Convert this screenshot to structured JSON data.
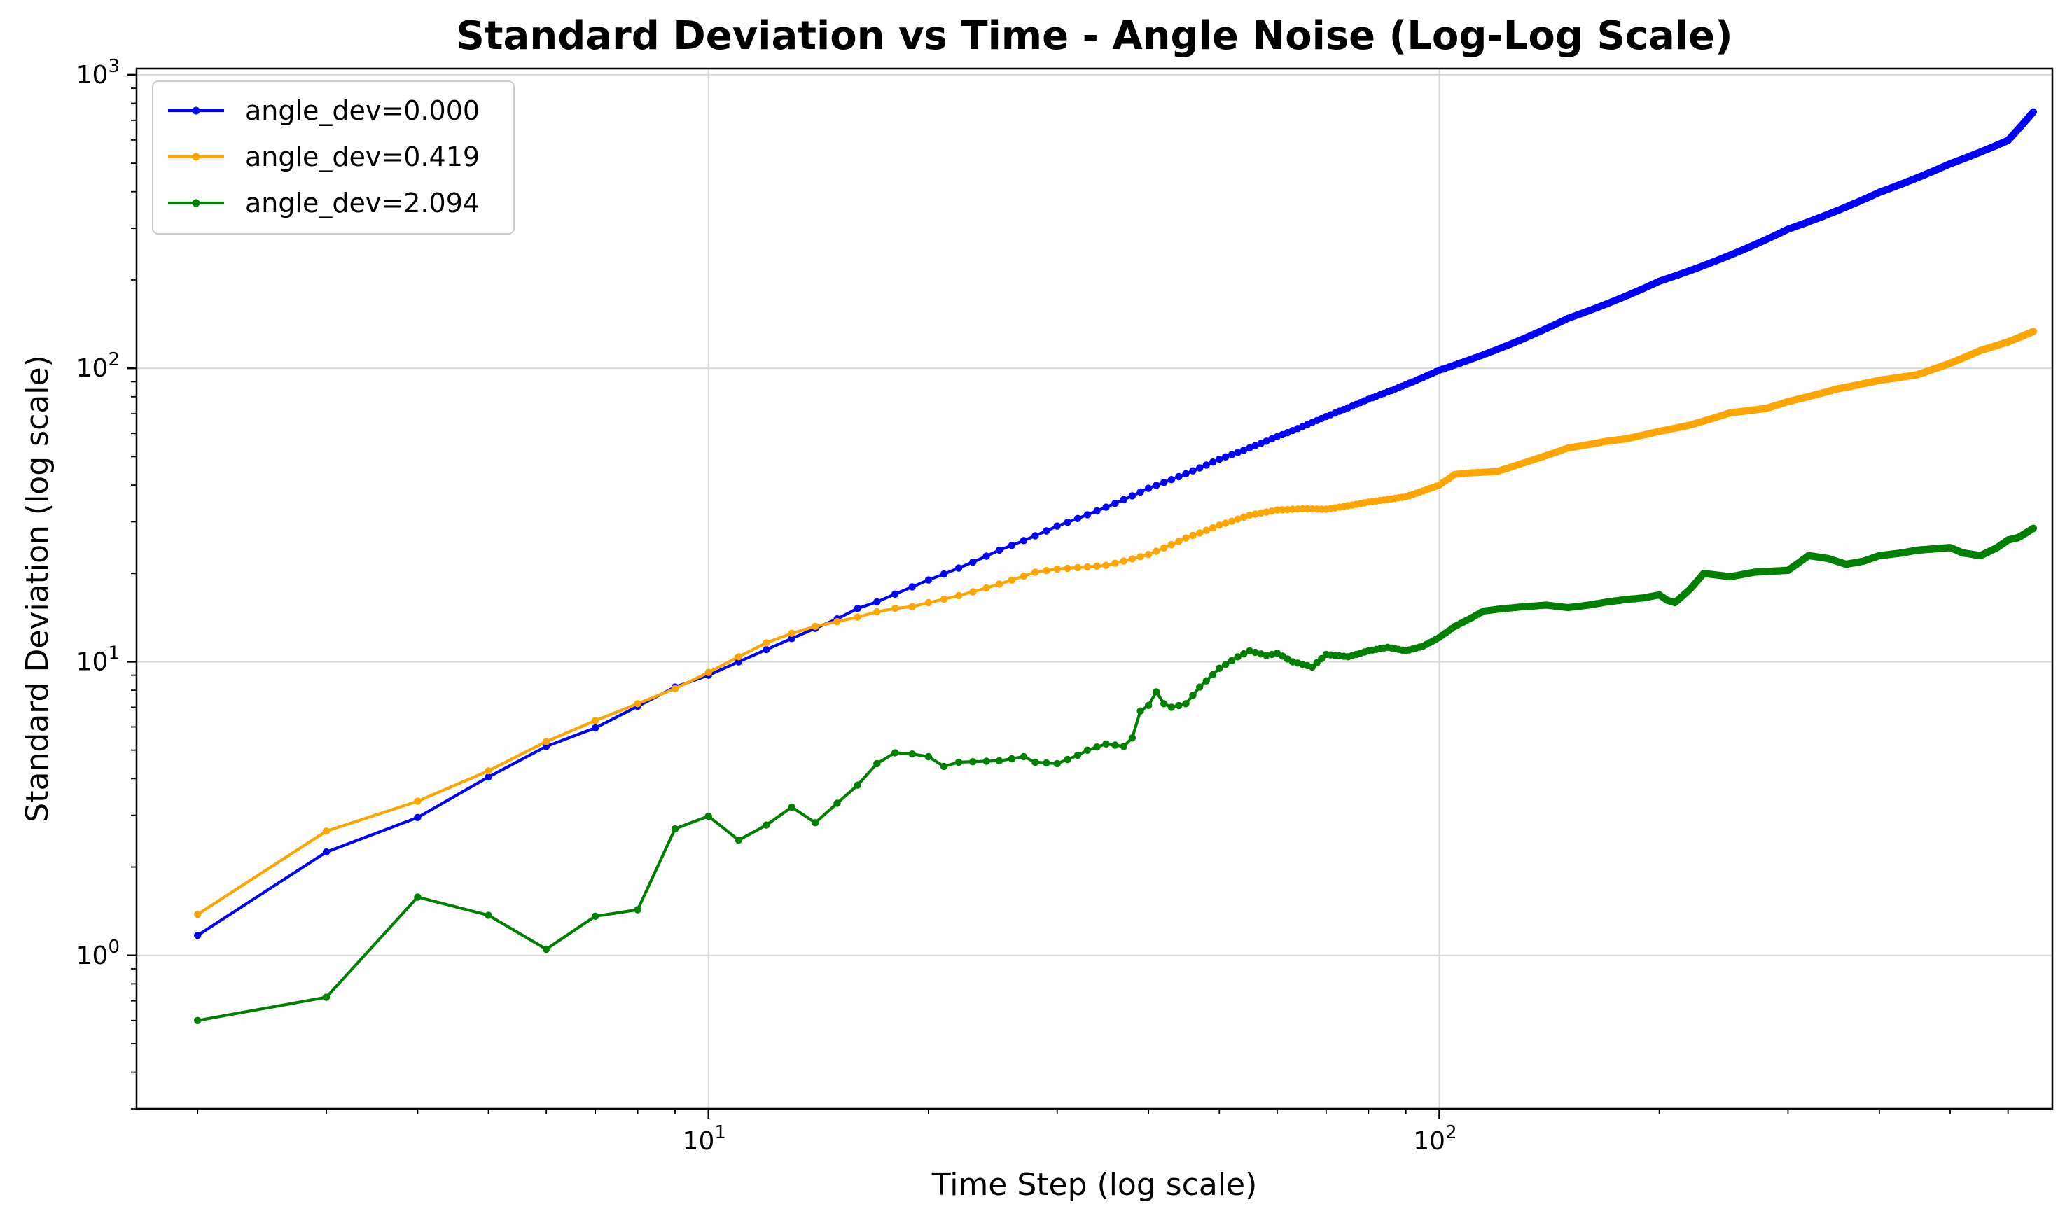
{
  "chart_data": {
    "type": "line",
    "title": "Standard Deviation vs Time - Angle Noise (Log-Log Scale)",
    "xlabel": "Time Step (log scale)",
    "ylabel": "Standard Deviation (log scale)",
    "xscale": "log",
    "yscale": "log",
    "xlim": [
      1.65,
      690
    ],
    "ylim": [
      0.3,
      1050
    ],
    "xticks": [
      {
        "value": 10,
        "base": "10",
        "exp": "1"
      },
      {
        "value": 100,
        "base": "10",
        "exp": "2"
      }
    ],
    "yticks": [
      {
        "value": 1,
        "base": "10",
        "exp": "0"
      },
      {
        "value": 10,
        "base": "10",
        "exp": "1"
      },
      {
        "value": 100,
        "base": "10",
        "exp": "2"
      },
      {
        "value": 1000,
        "base": "10",
        "exp": "3"
      }
    ],
    "grid": true,
    "legend_position": "top-left",
    "series": [
      {
        "name": "angle_dev=0.000",
        "color": "#0000ff",
        "x": [
          2,
          3,
          4,
          5,
          6,
          7,
          8,
          9,
          10,
          11,
          12,
          13,
          14,
          15,
          16,
          17,
          18,
          19,
          20,
          25,
          30,
          40,
          50,
          60,
          70,
          80,
          100,
          150,
          200,
          300,
          400,
          500,
          600,
          650
        ],
        "y": [
          1.17,
          2.25,
          2.95,
          4.05,
          5.15,
          5.95,
          7.05,
          8.2,
          9.0,
          10.0,
          11.0,
          12.0,
          13.0,
          14.0,
          15.2,
          16.0,
          17.0,
          18.0,
          19.0,
          24.0,
          29.0,
          39.0,
          49.0,
          58.5,
          68.5,
          78.5,
          98.5,
          148,
          198,
          298,
          398,
          498,
          598,
          748
        ]
      },
      {
        "name": "angle_dev=0.419",
        "color": "#ffa500",
        "x": [
          2,
          3,
          4,
          5,
          6,
          7,
          8,
          9,
          10,
          11,
          12,
          13,
          14,
          15,
          16,
          17,
          18,
          19,
          20,
          22,
          25,
          28,
          30,
          35,
          40,
          45,
          50,
          55,
          60,
          65,
          70,
          75,
          80,
          90,
          100,
          105,
          110,
          120,
          130,
          150,
          170,
          180,
          200,
          220,
          250,
          280,
          300,
          350,
          400,
          450,
          500,
          550,
          600,
          650
        ],
        "y": [
          1.38,
          2.65,
          3.35,
          4.25,
          5.35,
          6.3,
          7.2,
          8.1,
          9.2,
          10.4,
          11.6,
          12.5,
          13.2,
          13.7,
          14.2,
          14.8,
          15.2,
          15.4,
          15.9,
          16.8,
          18.4,
          20.2,
          20.7,
          21.3,
          23.2,
          26.4,
          29.2,
          31.6,
          32.9,
          33.2,
          33.1,
          34.0,
          35.0,
          36.5,
          40.0,
          43.5,
          44.0,
          44.5,
          47.5,
          53.5,
          56.5,
          57.5,
          61.0,
          64.0,
          70.5,
          73.0,
          77.0,
          85.0,
          91.0,
          95.0,
          104.0,
          115.0,
          123.0,
          133.5
        ]
      },
      {
        "name": "angle_dev=2.094",
        "color": "#008000",
        "x": [
          2,
          3,
          4,
          5,
          6,
          7,
          8,
          9,
          10,
          11,
          12,
          13,
          14,
          15,
          16,
          17,
          18,
          19,
          20,
          21,
          22,
          25,
          27,
          28,
          30,
          32,
          33,
          35,
          36,
          37,
          38,
          39,
          40,
          41,
          42,
          43,
          45,
          47,
          50,
          53,
          55,
          58,
          60,
          63,
          67,
          70,
          75,
          80,
          85,
          90,
          95,
          100,
          105,
          110,
          115,
          120,
          130,
          140,
          150,
          160,
          170,
          180,
          190,
          200,
          205,
          210,
          220,
          230,
          250,
          270,
          300,
          320,
          340,
          360,
          380,
          400,
          430,
          450,
          500,
          520,
          550,
          580,
          600,
          620,
          650
        ],
        "y": [
          0.6,
          0.72,
          1.58,
          1.37,
          1.05,
          1.36,
          1.43,
          2.7,
          2.98,
          2.47,
          2.78,
          3.2,
          2.83,
          3.3,
          3.8,
          4.5,
          4.9,
          4.85,
          4.75,
          4.4,
          4.55,
          4.6,
          4.75,
          4.55,
          4.5,
          4.8,
          5.0,
          5.25,
          5.2,
          5.15,
          5.5,
          6.8,
          7.1,
          7.9,
          7.2,
          7.0,
          7.2,
          8.2,
          9.5,
          10.4,
          10.9,
          10.5,
          10.7,
          10.0,
          9.6,
          10.6,
          10.4,
          10.9,
          11.2,
          10.9,
          11.3,
          12.1,
          13.2,
          14.0,
          14.9,
          15.1,
          15.4,
          15.6,
          15.3,
          15.6,
          16.0,
          16.3,
          16.5,
          16.9,
          16.2,
          15.9,
          17.6,
          20.0,
          19.5,
          20.2,
          20.5,
          23.0,
          22.5,
          21.5,
          22.0,
          23.0,
          23.5,
          24.0,
          24.5,
          23.5,
          23.0,
          24.5,
          26.0,
          26.5,
          28.5
        ]
      }
    ]
  }
}
